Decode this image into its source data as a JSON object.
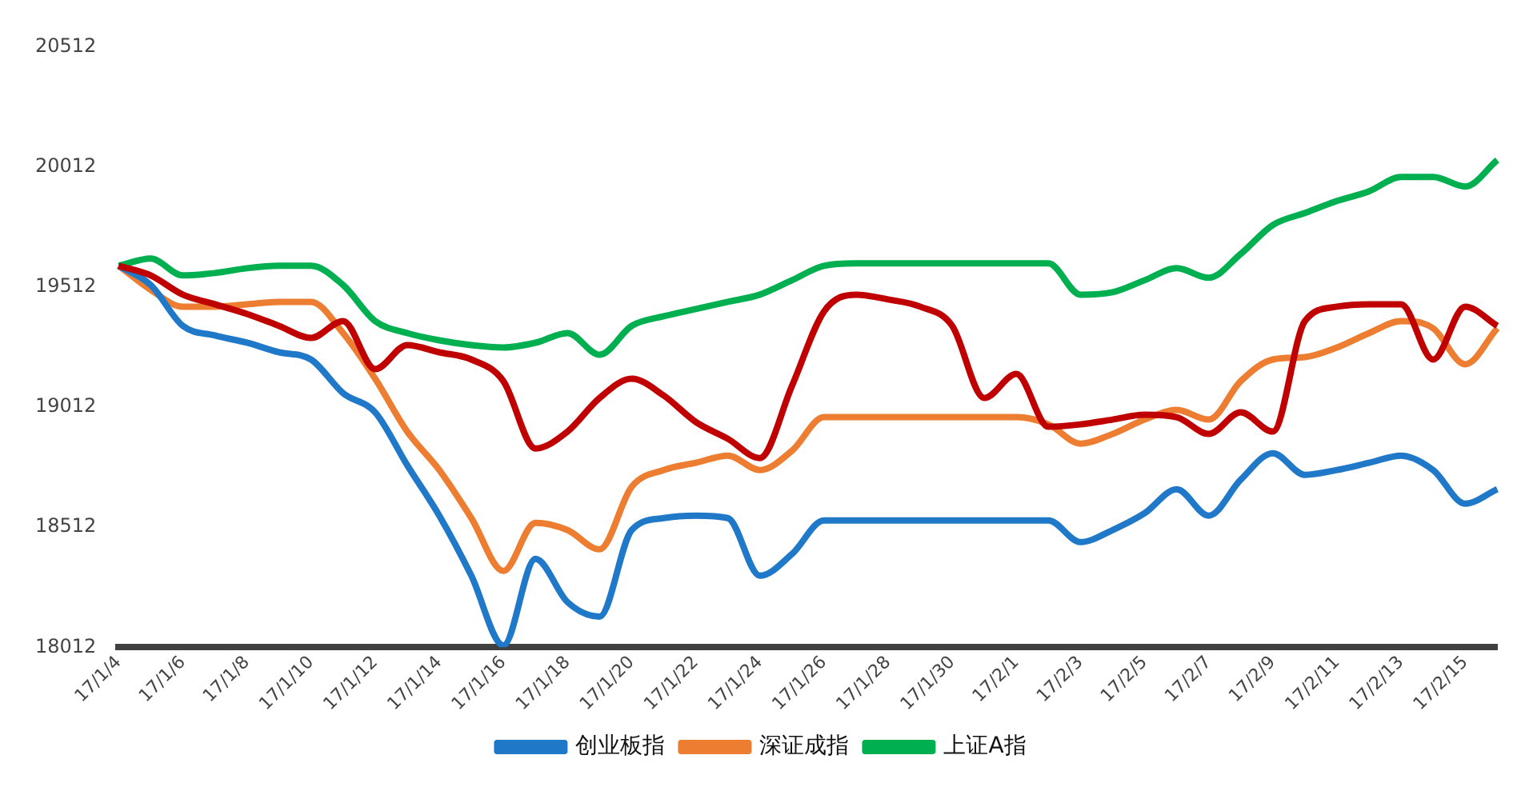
{
  "chart_data": {
    "type": "line",
    "categories": [
      "17/1/4",
      null,
      "17/1/6",
      null,
      "17/1/8",
      null,
      "17/1/10",
      null,
      "17/1/12",
      null,
      "17/1/14",
      null,
      "17/1/16",
      null,
      "17/1/18",
      null,
      "17/1/20",
      null,
      "17/1/22",
      null,
      "17/1/24",
      null,
      "17/1/26",
      null,
      "17/1/28",
      null,
      "17/1/30",
      null,
      "17/2/1",
      null,
      "17/2/3",
      null,
      "17/2/5",
      null,
      "17/2/7",
      null,
      "17/2/9",
      null,
      "17/2/11",
      null,
      "17/2/13",
      null,
      "17/2/15",
      null
    ],
    "series": [
      {
        "color": "#c00000",
        "values": [
          19600,
          19560,
          19480,
          19440,
          19400,
          19350,
          19300,
          19370,
          19170,
          19270,
          19240,
          19210,
          19120,
          18840,
          18910,
          19050,
          19130,
          19060,
          18950,
          18880,
          18800,
          19100,
          19410,
          19480,
          19460,
          19430,
          19350,
          19050,
          19150,
          18930,
          18940,
          18960,
          18980,
          18970,
          18900,
          18990,
          18910,
          19370,
          19430,
          19440,
          19440,
          19210,
          19430,
          19350
        ]
      },
      {
        "name": "创业板指",
        "color": "#1f78c8",
        "values": [
          19600,
          19520,
          19350,
          19310,
          19280,
          19240,
          19210,
          19070,
          18990,
          18770,
          18560,
          18310,
          18020,
          18380,
          18200,
          18140,
          18500,
          18550,
          18560,
          18550,
          18310,
          18400,
          18540,
          18540,
          18540,
          18540,
          18540,
          18540,
          18540,
          18540,
          18450,
          18500,
          18570,
          18670,
          18560,
          18710,
          18820,
          18730,
          18750,
          18780,
          18810,
          18750,
          18610,
          18670
        ]
      },
      {
        "name": "深证成指",
        "color": "#ed7d31",
        "values": [
          19600,
          19500,
          19430,
          19430,
          19440,
          19450,
          19450,
          19320,
          19130,
          18910,
          18750,
          18550,
          18330,
          18530,
          18500,
          18420,
          18680,
          18750,
          18780,
          18810,
          18750,
          18830,
          18970,
          18970,
          18970,
          18970,
          18970,
          18970,
          18970,
          18940,
          18860,
          18900,
          18960,
          19000,
          18960,
          19120,
          19210,
          19220,
          19260,
          19320,
          19370,
          19340,
          19190,
          19340
        ]
      },
      {
        "name": "上证A指",
        "color": "#00b050",
        "values": [
          19600,
          19630,
          19560,
          19570,
          19590,
          19600,
          19600,
          19520,
          19370,
          19320,
          19290,
          19270,
          19260,
          19280,
          19320,
          19230,
          19350,
          19390,
          19420,
          19450,
          19480,
          19540,
          19600,
          19610,
          19610,
          19610,
          19610,
          19610,
          19610,
          19610,
          19480,
          19490,
          19540,
          19590,
          19550,
          19650,
          19770,
          19820,
          19870,
          19910,
          19970,
          19970,
          19930,
          20040
        ]
      }
    ],
    "ylim": [
      18012,
      20512
    ],
    "yticks": [
      18012,
      18512,
      19012,
      19512,
      20012,
      20512
    ],
    "legend": "bottom"
  }
}
